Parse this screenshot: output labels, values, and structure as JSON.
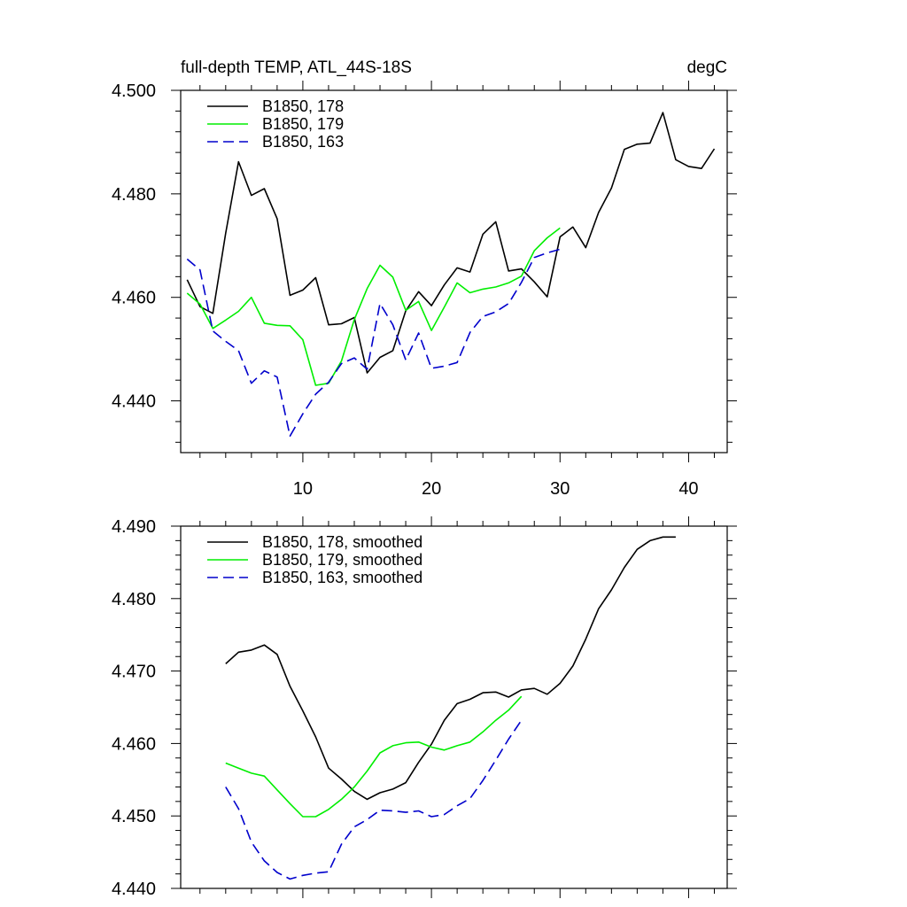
{
  "panel_title": {
    "left": "full-depth TEMP, ATL_44S-18S",
    "right": "degC"
  },
  "colors": {
    "s178": "#000000",
    "s179": "#00ee00",
    "s163": "#0000cc"
  },
  "chart_data": [
    {
      "type": "line",
      "title": "full-depth TEMP, ATL_44S-18S",
      "units": "degC",
      "xlim": [
        0.5,
        43
      ],
      "ylim": [
        4.43,
        4.5
      ],
      "xticks": [
        10,
        20,
        30,
        40
      ],
      "xtick_labels": [
        "10",
        "20",
        "30",
        "40"
      ],
      "yticks": [
        4.44,
        4.46,
        4.48,
        4.5
      ],
      "ytick_labels": [
        "4.440",
        "4.460",
        "4.480",
        "4.500"
      ],
      "legend_position": "top-left",
      "series": [
        {
          "name": "B1850, 178",
          "color": "#000000",
          "dash": "solid",
          "x": [
            1,
            2,
            3,
            4,
            5,
            6,
            7,
            8,
            9,
            10,
            11,
            12,
            13,
            14,
            15,
            16,
            17,
            18,
            19,
            20,
            21,
            22,
            23,
            24,
            25,
            26,
            27,
            28,
            29,
            30,
            31,
            32,
            33,
            34,
            35,
            36,
            37,
            38,
            39,
            40,
            41,
            42
          ],
          "values": [
            4.4634,
            4.4582,
            4.4569,
            4.4724,
            4.4862,
            4.4797,
            4.481,
            4.4752,
            4.4604,
            4.4614,
            4.4638,
            4.4547,
            4.4549,
            4.4561,
            4.4454,
            4.4484,
            4.4497,
            4.4574,
            4.4611,
            4.4584,
            4.4624,
            4.4657,
            4.4649,
            4.4722,
            4.4746,
            4.4651,
            4.4655,
            4.463,
            4.4601,
            4.4717,
            4.4736,
            4.4696,
            4.4764,
            4.4811,
            4.4886,
            4.4896,
            4.4898,
            4.4957,
            4.4866,
            4.4853,
            4.4849,
            4.4887
          ]
        },
        {
          "name": "B1850, 179",
          "color": "#00ee00",
          "dash": "solid",
          "x": [
            1,
            2,
            3,
            4,
            5,
            6,
            7,
            8,
            9,
            10,
            11,
            12,
            13,
            14,
            15,
            16,
            17,
            18,
            19,
            20,
            21,
            22,
            23,
            24,
            25,
            26,
            27,
            28,
            29,
            30
          ],
          "values": [
            4.4608,
            4.4587,
            4.454,
            4.4556,
            4.4573,
            4.46,
            4.455,
            4.4546,
            4.4545,
            4.4518,
            4.443,
            4.4434,
            4.4477,
            4.4557,
            4.4617,
            4.4662,
            4.4639,
            4.4575,
            4.4592,
            4.4536,
            4.4581,
            4.4628,
            4.4609,
            4.4616,
            4.462,
            4.4628,
            4.4641,
            4.469,
            4.4715,
            4.4734
          ]
        },
        {
          "name": "B1850, 163",
          "color": "#0000cc",
          "dash": "dashed",
          "x": [
            1,
            2,
            3,
            4,
            5,
            6,
            7,
            8,
            9,
            10,
            11,
            12,
            13,
            14,
            15,
            16,
            17,
            18,
            19,
            20,
            21,
            22,
            23,
            24,
            25,
            26,
            27,
            28,
            29,
            30
          ],
          "values": [
            4.4674,
            4.4653,
            4.4535,
            4.4515,
            4.4497,
            4.4434,
            4.4458,
            4.4446,
            4.4332,
            4.4375,
            4.4413,
            4.4436,
            4.4472,
            4.4483,
            4.4461,
            4.4588,
            4.4547,
            4.4479,
            4.4531,
            4.4463,
            4.4467,
            4.4474,
            4.4532,
            4.4563,
            4.4572,
            4.4588,
            4.4629,
            4.4677,
            4.4686,
            4.4693
          ]
        }
      ]
    },
    {
      "type": "line",
      "xlim": [
        0.5,
        43
      ],
      "ylim": [
        4.44,
        4.49
      ],
      "xticks": [
        10,
        20,
        30,
        40
      ],
      "xtick_labels": [
        "",
        "",
        "",
        ""
      ],
      "yticks": [
        4.44,
        4.45,
        4.46,
        4.47,
        4.48,
        4.49
      ],
      "ytick_labels": [
        "4.440",
        "4.450",
        "4.460",
        "4.470",
        "4.480",
        "4.490"
      ],
      "legend_position": "top-left",
      "series": [
        {
          "name": "B1850, 178, smoothed",
          "color": "#000000",
          "dash": "solid",
          "x": [
            4,
            5,
            6,
            7,
            8,
            9,
            10,
            11,
            12,
            13,
            14,
            15,
            16,
            17,
            18,
            19,
            20,
            21,
            22,
            23,
            24,
            25,
            26,
            27,
            28,
            29,
            30,
            31,
            32,
            33,
            34,
            35,
            36,
            37,
            38,
            39
          ],
          "values": [
            4.471,
            4.4726,
            4.4729,
            4.4736,
            4.4723,
            4.4679,
            4.4645,
            4.4609,
            4.4566,
            4.4551,
            4.4534,
            4.4523,
            4.4532,
            4.4537,
            4.4546,
            4.4574,
            4.4599,
            4.4632,
            4.4655,
            4.4661,
            4.467,
            4.4671,
            4.4664,
            4.4674,
            4.4676,
            4.4668,
            4.4683,
            4.4707,
            4.4744,
            4.4786,
            4.4812,
            4.4843,
            4.4868,
            4.488,
            4.4885,
            4.4885
          ]
        },
        {
          "name": "B1850, 179, smoothed",
          "color": "#00ee00",
          "dash": "solid",
          "x": [
            4,
            5,
            6,
            7,
            8,
            9,
            10,
            11,
            12,
            13,
            14,
            15,
            16,
            17,
            18,
            19,
            20,
            21,
            22,
            23,
            24,
            25,
            26,
            27
          ],
          "values": [
            4.4573,
            4.4566,
            4.4559,
            4.4555,
            4.4536,
            4.4517,
            4.4499,
            4.4499,
            4.4509,
            4.4523,
            4.454,
            4.4562,
            4.4587,
            4.4597,
            4.4601,
            4.4602,
            4.4595,
            4.4591,
            4.4597,
            4.4602,
            4.4616,
            4.4632,
            4.4646,
            4.4665
          ]
        },
        {
          "name": "B1850, 163, smoothed",
          "color": "#0000cc",
          "dash": "dashed",
          "x": [
            4,
            5,
            6,
            7,
            8,
            9,
            10,
            11,
            12,
            13,
            14,
            15,
            16,
            17,
            18,
            19,
            20,
            21,
            22,
            23,
            24,
            25,
            26,
            27
          ],
          "values": [
            4.454,
            4.451,
            4.4464,
            4.4438,
            4.4422,
            4.4413,
            4.4418,
            4.4421,
            4.4423,
            4.4461,
            4.4485,
            4.4495,
            4.4508,
            4.4507,
            4.4505,
            4.4507,
            4.4499,
            4.4502,
            4.4514,
            4.4524,
            4.4549,
            4.4577,
            4.4606,
            4.4632
          ]
        }
      ]
    }
  ]
}
